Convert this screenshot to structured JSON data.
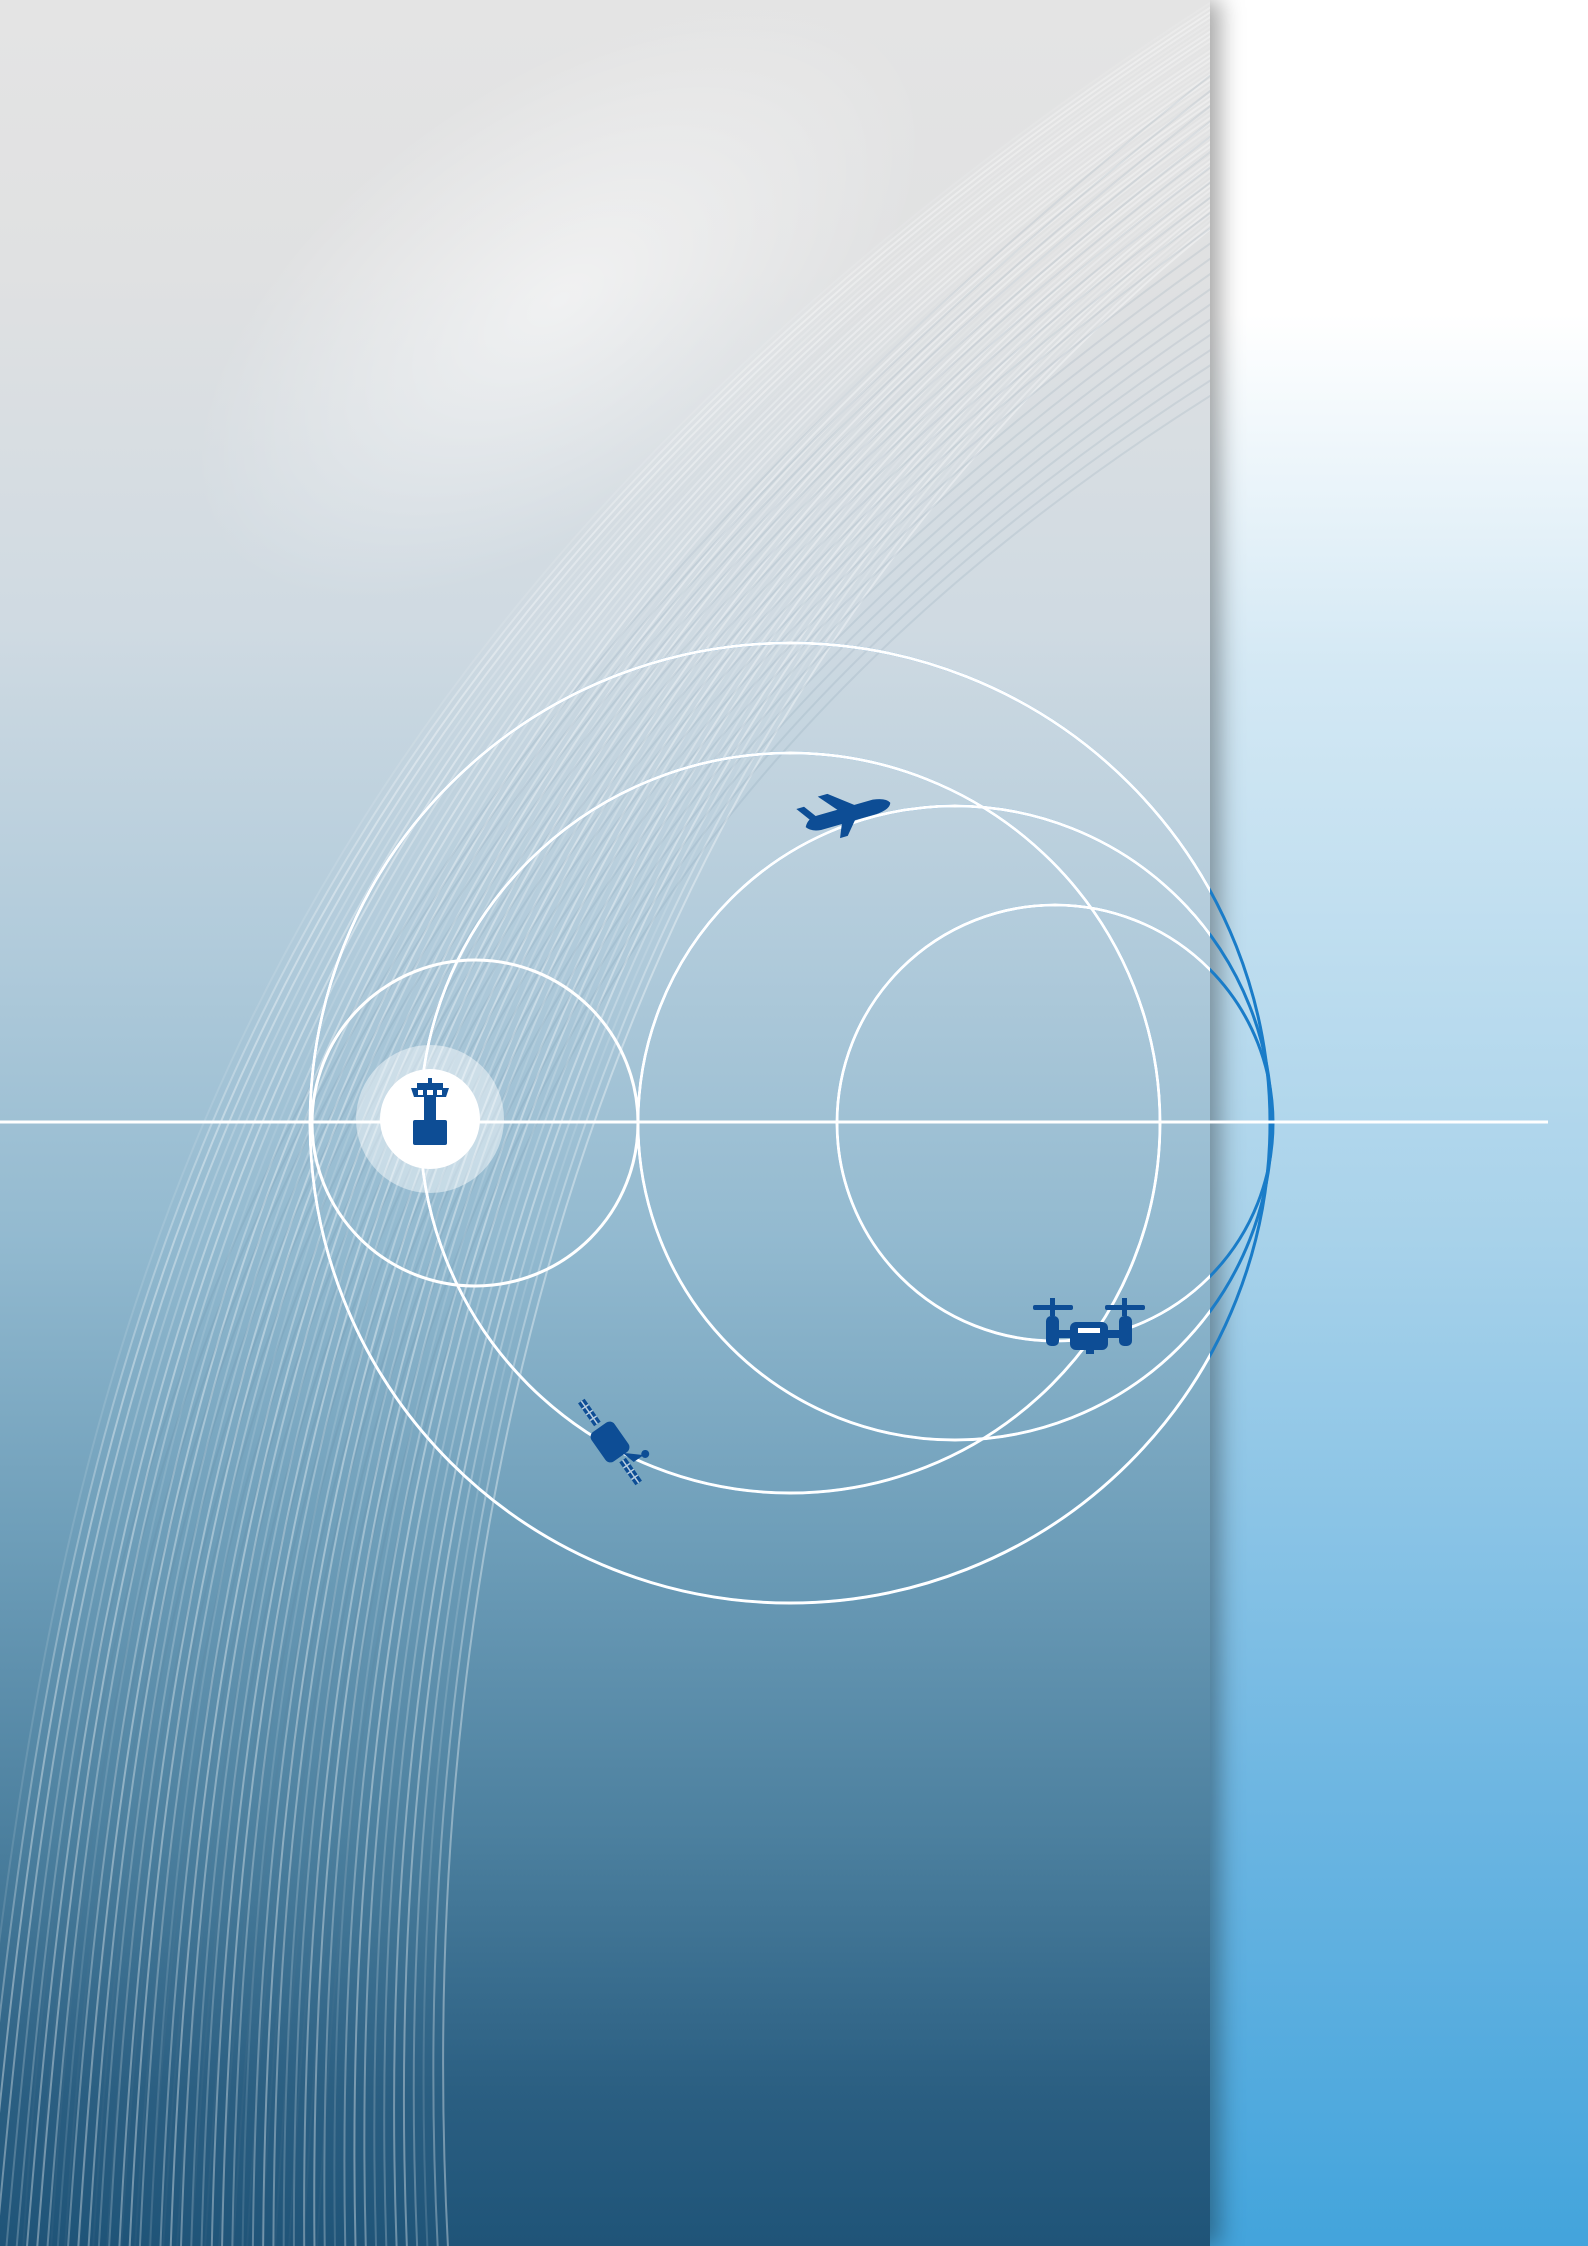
{
  "colors": {
    "panel_top": "#e4e4e4",
    "panel_bottom": "#1f5478",
    "background_bottom": "#43a4dc",
    "icon": "#0d4d95",
    "ring": "#ffffff",
    "ring_outside": "#1a7cc8"
  },
  "icons": [
    "control-tower-icon",
    "airplane-icon",
    "drone-icon",
    "satellite-icon"
  ]
}
